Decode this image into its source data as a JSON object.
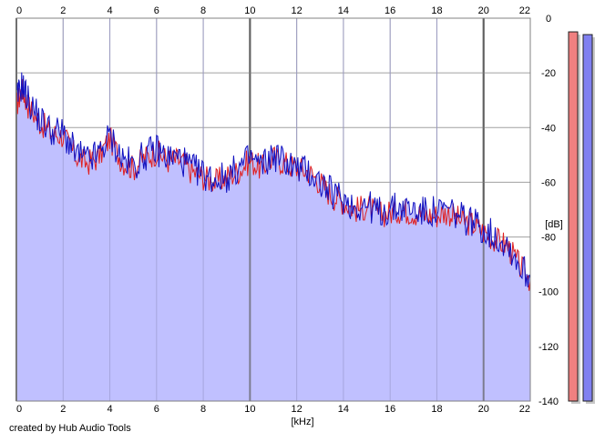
{
  "app_credit": "created by Hub Audio Tools",
  "colors": {
    "background": "#ffffff",
    "fill": "#c0c0ff",
    "grid": "#a0a0a0",
    "channel_left": "#e02020",
    "channel_right": "#1010c0",
    "meter_left": "#f08080",
    "meter_right": "#8080f0"
  },
  "chart_data": {
    "type": "line",
    "title": "",
    "xlabel": "[kHz]",
    "ylabel": "[dB]",
    "xlim": [
      0,
      22
    ],
    "ylim": [
      -140,
      0
    ],
    "x_ticks": [
      "0",
      "2",
      "4",
      "6",
      "8",
      "10",
      "12",
      "14",
      "16",
      "18",
      "20",
      "22"
    ],
    "y_ticks": [
      "0",
      "-20",
      "-40",
      "-60",
      "-80",
      "-100",
      "-120",
      "-140"
    ],
    "grid": true,
    "filled_area": true,
    "x": [
      0,
      0.25,
      0.5,
      1,
      1.5,
      2,
      2.5,
      3,
      3.5,
      4,
      4.5,
      5,
      5.5,
      6,
      6.5,
      7,
      7.5,
      8,
      8.5,
      9,
      9.5,
      10,
      10.5,
      11,
      11.5,
      12,
      12.5,
      13,
      13.5,
      14,
      14.5,
      15,
      15.5,
      16,
      16.5,
      17,
      17.5,
      18,
      18.5,
      19,
      19.5,
      20,
      20.5,
      21,
      21.5,
      22
    ],
    "series": [
      {
        "values": [
          -32,
          -26,
          -32,
          -38,
          -42,
          -43,
          -50,
          -53,
          -51,
          -44,
          -52,
          -55,
          -51,
          -49,
          -52,
          -52,
          -56,
          -58,
          -60,
          -58,
          -56,
          -52,
          -55,
          -51,
          -53,
          -55,
          -56,
          -60,
          -65,
          -67,
          -70,
          -69,
          -72,
          -71,
          -70,
          -71,
          -72,
          -72,
          -71,
          -74,
          -75,
          -78,
          -81,
          -83,
          -90,
          -96
        ]
      },
      {
        "values": [
          -30,
          -24,
          -30,
          -37,
          -41,
          -42,
          -49,
          -52,
          -50,
          -43,
          -51,
          -54,
          -50,
          -48,
          -51,
          -51,
          -55,
          -57,
          -59,
          -58,
          -55,
          -51,
          -54,
          -50,
          -52,
          -55,
          -56,
          -60,
          -64,
          -66,
          -69,
          -68,
          -71,
          -70,
          -69,
          -70,
          -71,
          -71,
          -70,
          -73,
          -74,
          -77,
          -80,
          -82,
          -90,
          -95
        ]
      }
    ],
    "meters": [
      {
        "level_db": -5
      },
      {
        "level_db": -6
      }
    ]
  }
}
